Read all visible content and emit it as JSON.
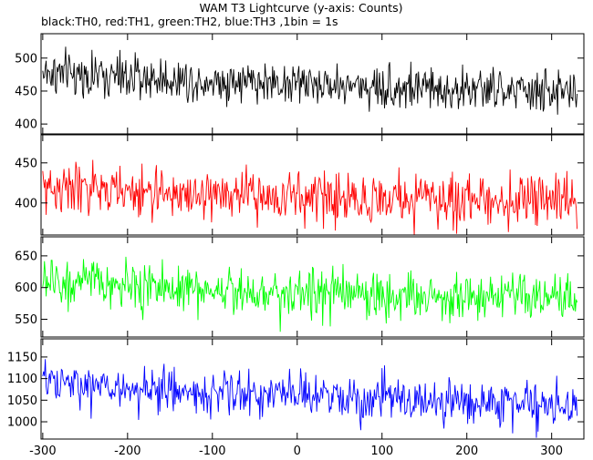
{
  "title": "WAM T3 Lightcurve (y-axis: Counts)",
  "subtitle": "black:TH0, red:TH1, green:TH2, blue:TH3 ,1bin = 1s",
  "chart_data": {
    "type": "line",
    "x_range": [
      -302,
      338
    ],
    "x_ticks": [
      -300,
      -200,
      -100,
      0,
      100,
      200,
      300
    ],
    "bin_seconds": 1,
    "grid": false,
    "legend": "none",
    "panels": [
      {
        "series": "TH0",
        "color": "#000000",
        "ylim": [
          385,
          537
        ],
        "y_ticks": [
          400,
          450,
          500
        ],
        "trend": [
          [
            -300,
            478
          ],
          [
            -200,
            470
          ],
          [
            -100,
            466
          ],
          [
            0,
            462
          ],
          [
            100,
            456
          ],
          [
            200,
            452
          ],
          [
            330,
            447
          ]
        ],
        "noise_sigma": 22
      },
      {
        "series": "TH1",
        "color": "#ff0000",
        "ylim": [
          360,
          485
        ],
        "y_ticks": [
          400,
          450
        ],
        "trend": [
          [
            -300,
            420
          ],
          [
            -200,
            413
          ],
          [
            -100,
            410
          ],
          [
            0,
            407
          ],
          [
            100,
            405
          ],
          [
            200,
            404
          ],
          [
            330,
            403
          ]
        ],
        "noise_sigma": 21
      },
      {
        "series": "TH2",
        "color": "#00ff00",
        "ylim": [
          522,
          680
        ],
        "y_ticks": [
          550,
          600,
          650
        ],
        "trend": [
          [
            -300,
            610
          ],
          [
            -200,
            602
          ],
          [
            -100,
            597
          ],
          [
            0,
            592
          ],
          [
            100,
            588
          ],
          [
            200,
            585
          ],
          [
            330,
            580
          ]
        ],
        "noise_sigma": 25
      },
      {
        "series": "TH3",
        "color": "#0000ff",
        "ylim": [
          960,
          1192
        ],
        "y_ticks": [
          1000,
          1050,
          1100,
          1150
        ],
        "trend": [
          [
            -300,
            1090
          ],
          [
            -200,
            1075
          ],
          [
            -100,
            1068
          ],
          [
            0,
            1060
          ],
          [
            100,
            1052
          ],
          [
            200,
            1045
          ],
          [
            330,
            1038
          ]
        ],
        "noise_sigma": 34
      }
    ]
  }
}
